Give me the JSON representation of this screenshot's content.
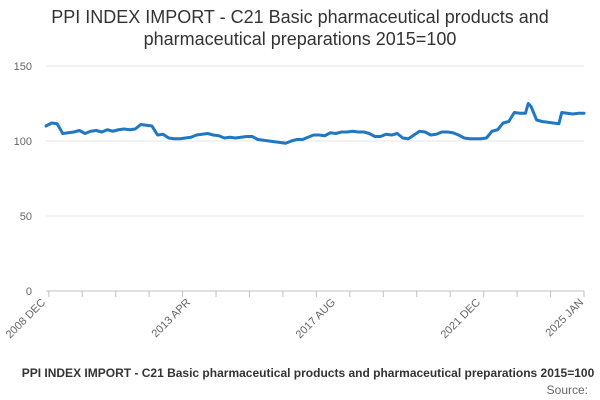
{
  "chart_data": {
    "type": "line",
    "title_lines": [
      "PPI INDEX IMPORT - C21 Basic pharmaceutical products and",
      "pharmaceutical preparations 2015=100"
    ],
    "xlabel": "",
    "ylabel": "",
    "ylim": [
      0,
      150
    ],
    "yticks": [
      0,
      50,
      100,
      150
    ],
    "xlim": [
      "2008-12",
      "2025-01"
    ],
    "xtick_labels": [
      "2008 DEC",
      "2013 APR",
      "2017 AUG",
      "2021 DEC",
      "2025 JAN"
    ],
    "xtick_dates": [
      "2008-12",
      "2013-04",
      "2017-08",
      "2021-12",
      "2025-01"
    ],
    "grid": "horizontal",
    "legend_position": "bottom",
    "color": "#1f78c1",
    "series": [
      {
        "name": "PPI INDEX IMPORT - C21 Basic pharmaceutical products and pharmaceutical preparations 2015=100",
        "points": [
          [
            "2008-12",
            110
          ],
          [
            "2009-02",
            112
          ],
          [
            "2009-04",
            111.5
          ],
          [
            "2009-06",
            105
          ],
          [
            "2009-08",
            105.5
          ],
          [
            "2009-10",
            106
          ],
          [
            "2009-12",
            107
          ],
          [
            "2010-02",
            105
          ],
          [
            "2010-04",
            106.5
          ],
          [
            "2010-06",
            107
          ],
          [
            "2010-08",
            106
          ],
          [
            "2010-10",
            107.5
          ],
          [
            "2010-12",
            106.5
          ],
          [
            "2011-02",
            107.5
          ],
          [
            "2011-04",
            108
          ],
          [
            "2011-06",
            107.5
          ],
          [
            "2011-08",
            108
          ],
          [
            "2011-10",
            111
          ],
          [
            "2011-12",
            110.5
          ],
          [
            "2012-02",
            110
          ],
          [
            "2012-04",
            104
          ],
          [
            "2012-06",
            104.5
          ],
          [
            "2012-08",
            102
          ],
          [
            "2012-10",
            101.5
          ],
          [
            "2012-12",
            101.5
          ],
          [
            "2013-04",
            102.5
          ],
          [
            "2013-06",
            104
          ],
          [
            "2013-08",
            104.5
          ],
          [
            "2013-10",
            105
          ],
          [
            "2013-12",
            104
          ],
          [
            "2014-02",
            103.5
          ],
          [
            "2014-04",
            102
          ],
          [
            "2014-06",
            102.5
          ],
          [
            "2014-08",
            102
          ],
          [
            "2014-10",
            102.5
          ],
          [
            "2014-12",
            103
          ],
          [
            "2015-02",
            103
          ],
          [
            "2015-04",
            101
          ],
          [
            "2015-06",
            100.5
          ],
          [
            "2015-08",
            100
          ],
          [
            "2015-10",
            99.5
          ],
          [
            "2015-12",
            99
          ],
          [
            "2016-02",
            98.5
          ],
          [
            "2016-04",
            100
          ],
          [
            "2016-06",
            101
          ],
          [
            "2016-08",
            101
          ],
          [
            "2016-10",
            102.5
          ],
          [
            "2016-12",
            104
          ],
          [
            "2017-02",
            104
          ],
          [
            "2017-04",
            103.5
          ],
          [
            "2017-06",
            105.5
          ],
          [
            "2017-08",
            105
          ],
          [
            "2017-10",
            106
          ],
          [
            "2017-12",
            106
          ],
          [
            "2018-02",
            106.5
          ],
          [
            "2018-04",
            106
          ],
          [
            "2018-06",
            106
          ],
          [
            "2018-08",
            105
          ],
          [
            "2018-10",
            103
          ],
          [
            "2018-12",
            103
          ],
          [
            "2019-02",
            104.5
          ],
          [
            "2019-04",
            104
          ],
          [
            "2019-06",
            105
          ],
          [
            "2019-08",
            102
          ],
          [
            "2019-10",
            101.5
          ],
          [
            "2019-12",
            104
          ],
          [
            "2020-02",
            106.5
          ],
          [
            "2020-04",
            106
          ],
          [
            "2020-06",
            104
          ],
          [
            "2020-08",
            104.5
          ],
          [
            "2020-10",
            106
          ],
          [
            "2020-12",
            106
          ],
          [
            "2021-02",
            105.5
          ],
          [
            "2021-04",
            104
          ],
          [
            "2021-06",
            102
          ],
          [
            "2021-08",
            101.5
          ],
          [
            "2021-10",
            101.5
          ],
          [
            "2021-12",
            101.5
          ],
          [
            "2022-02",
            102
          ],
          [
            "2022-04",
            106.5
          ],
          [
            "2022-06",
            107.5
          ],
          [
            "2022-08",
            112
          ],
          [
            "2022-10",
            113
          ],
          [
            "2022-12",
            119
          ],
          [
            "2023-02",
            118.5
          ],
          [
            "2023-04",
            118.5
          ],
          [
            "2023-05",
            125
          ],
          [
            "2023-06",
            123
          ],
          [
            "2023-08",
            114
          ],
          [
            "2023-10",
            113
          ],
          [
            "2023-12",
            112.5
          ],
          [
            "2024-02",
            112
          ],
          [
            "2024-04",
            111.5
          ],
          [
            "2024-05",
            119
          ],
          [
            "2024-07",
            118.5
          ],
          [
            "2024-09",
            118
          ],
          [
            "2024-11",
            118.5
          ],
          [
            "2025-01",
            118.5
          ]
        ]
      }
    ],
    "source_label": "Source:"
  }
}
